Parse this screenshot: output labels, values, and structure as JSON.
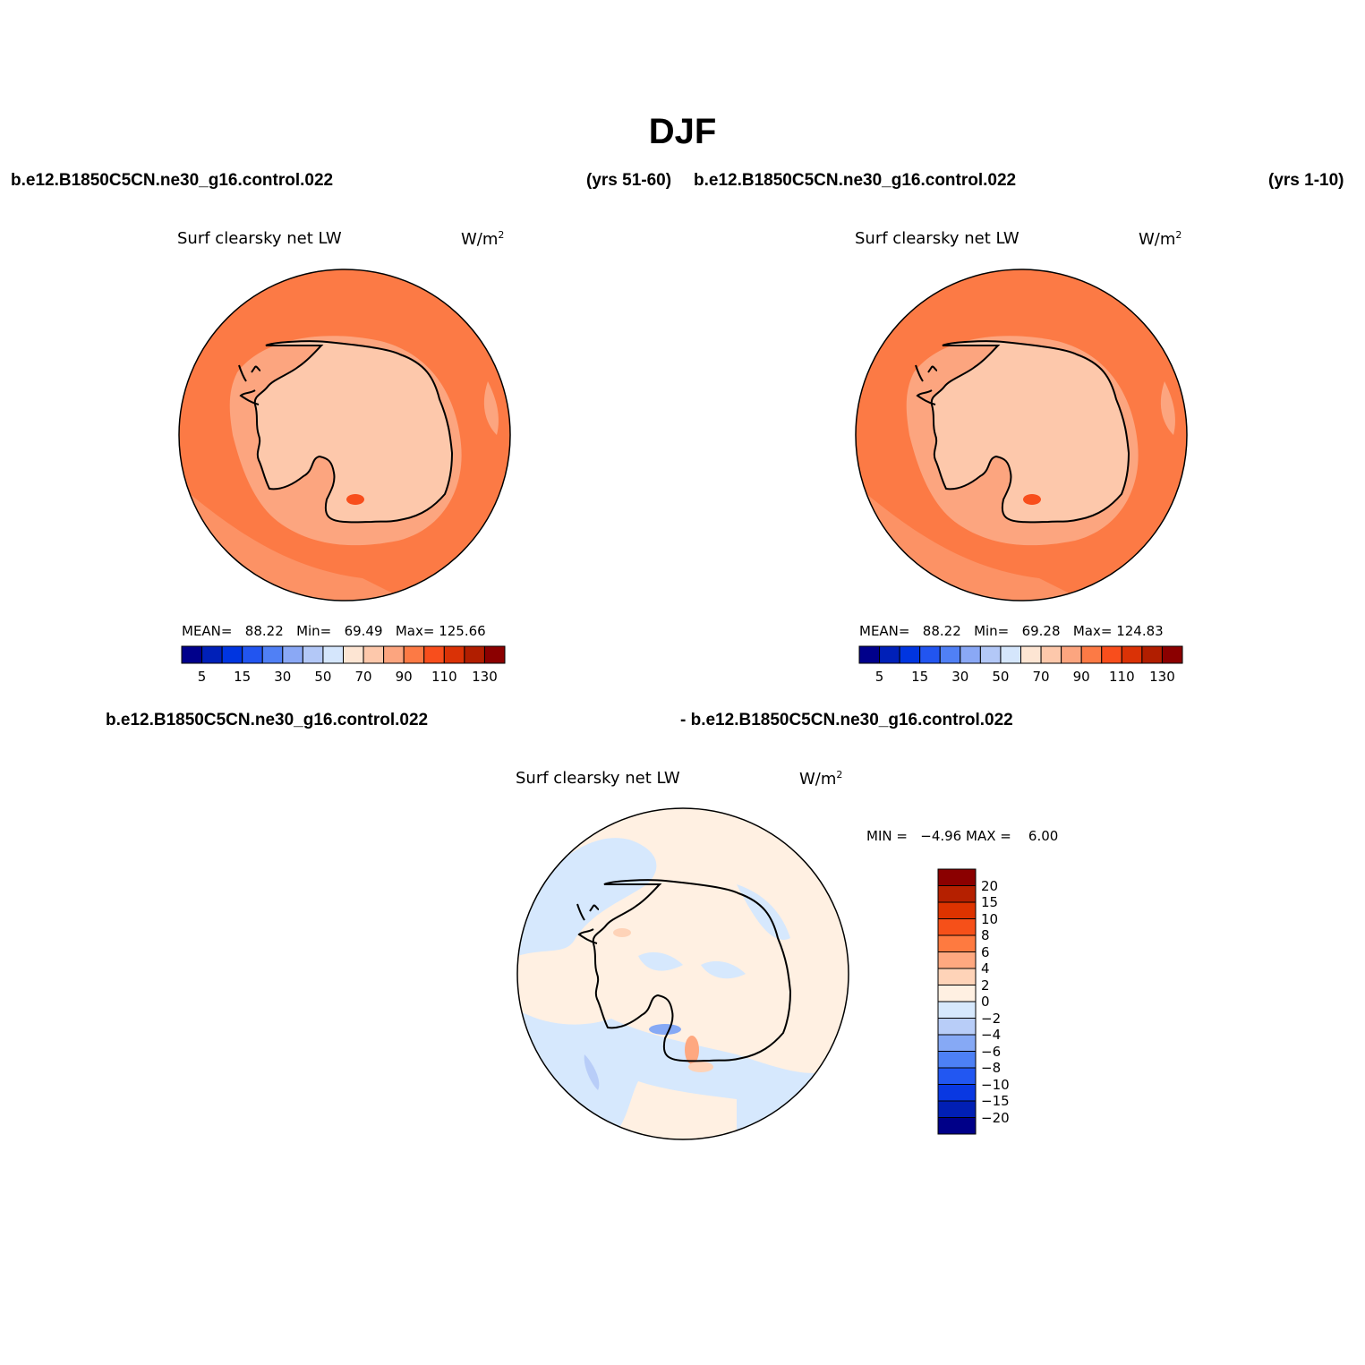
{
  "figure": {
    "title": "DJF"
  },
  "panels": [
    {
      "case_name": "b.e12.B1850C5CN.ne30_g16.control.022",
      "years": "(yrs 51-60)",
      "variable": "Surf clearsky net LW",
      "units_base": "W/m",
      "units_exp": "2",
      "stats": {
        "mean_label": "MEAN=",
        "mean": "88.22",
        "min_label": "Min=",
        "min": "69.49",
        "max_label": "Max=",
        "max": "125.66"
      }
    },
    {
      "case_name": "b.e12.B1850C5CN.ne30_g16.control.022",
      "years": "(yrs 1-10)",
      "variable": "Surf clearsky net LW",
      "units_base": "W/m",
      "units_exp": "2",
      "stats": {
        "mean_label": "MEAN=",
        "mean": "88.22",
        "min_label": "Min=",
        "min": "69.28",
        "max_label": "Max=",
        "max": "124.83"
      }
    }
  ],
  "diff_panel": {
    "case_left": "b.e12.B1850C5CN.ne30_g16.control.022",
    "case_right": "- b.e12.B1850C5CN.ne30_g16.control.022",
    "variable": "Surf clearsky net LW",
    "units_base": "W/m",
    "units_exp": "2",
    "stats": {
      "min_label": "MIN =",
      "min": "−4.96",
      "max_label": "MAX =",
      "max": "6.00"
    }
  },
  "colorbar_abs": {
    "colors": [
      "#00008b",
      "#0020b8",
      "#0035e0",
      "#2255f0",
      "#5080f5",
      "#8aa8f5",
      "#b3c8f7",
      "#d5e6fc",
      "#fde5d3",
      "#fdc8ab",
      "#fca57f",
      "#fc7a45",
      "#f84e1c",
      "#da3206",
      "#b11e00",
      "#8b0000"
    ],
    "tick_labels": [
      "5",
      "15",
      "30",
      "50",
      "70",
      "90",
      "110",
      "130"
    ]
  },
  "colorbar_diff": {
    "colors": [
      "#8b0000",
      "#b52000",
      "#dd3300",
      "#f65019",
      "#fe7a40",
      "#fea880",
      "#fed3b8",
      "#fff0e2",
      "#d6e8fd",
      "#b8cdf8",
      "#86a9f5",
      "#4d80f5",
      "#2257f2",
      "#0938e2",
      "#011fb4",
      "#000088"
    ],
    "tick_labels": [
      "20",
      "15",
      "10",
      "8",
      "6",
      "4",
      "2",
      "0",
      "−2",
      "−4",
      "−6",
      "−8",
      "−10",
      "−15",
      "−20"
    ]
  }
}
